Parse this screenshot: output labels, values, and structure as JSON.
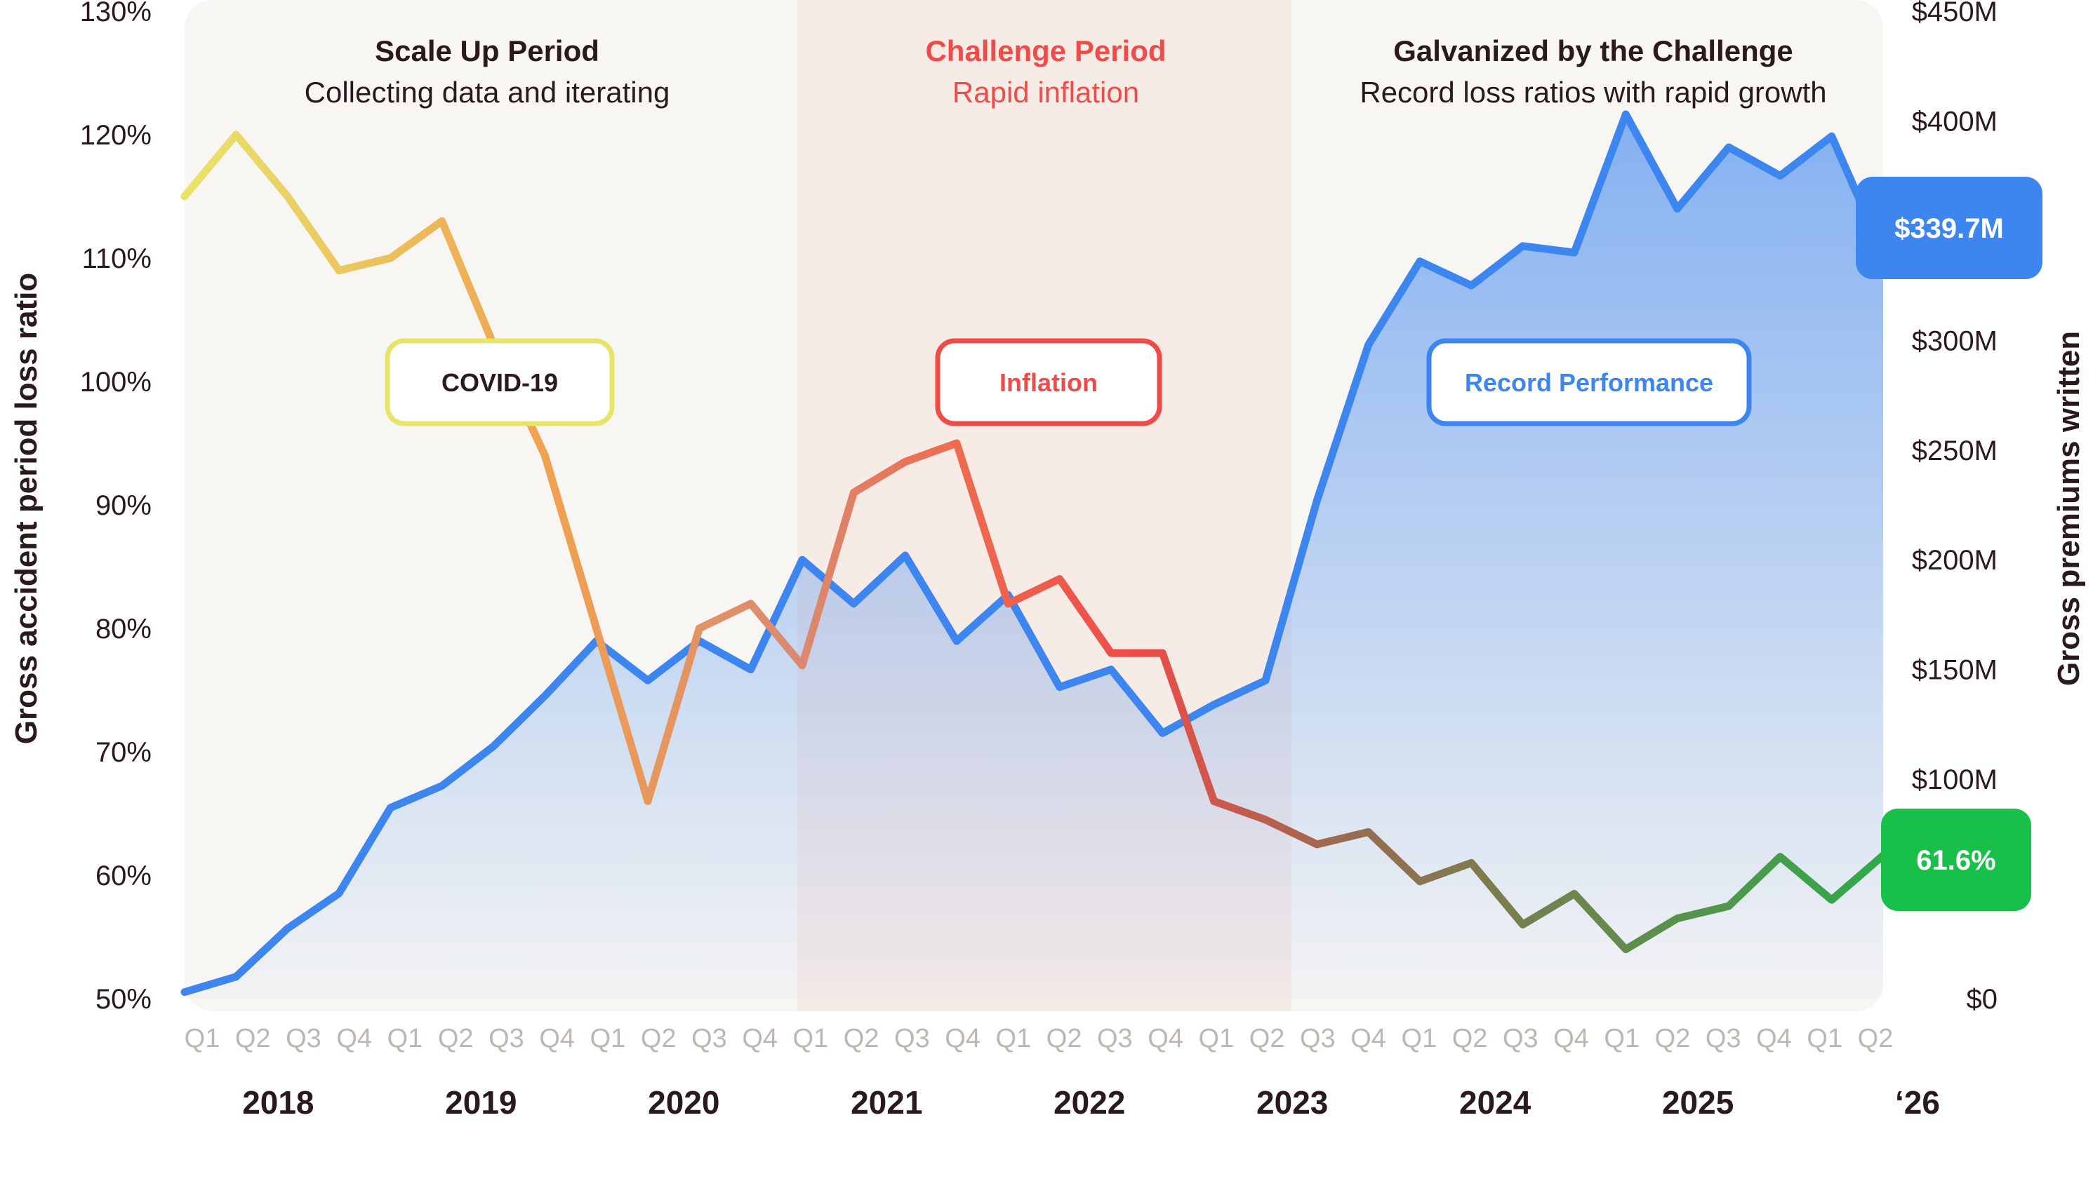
{
  "chart_data": {
    "type": "line",
    "x": [
      "Q1",
      "Q2",
      "Q3",
      "Q4",
      "Q1",
      "Q2",
      "Q3",
      "Q4",
      "Q1",
      "Q2",
      "Q3",
      "Q4",
      "Q1",
      "Q2",
      "Q3",
      "Q4",
      "Q1",
      "Q2",
      "Q3",
      "Q4",
      "Q1",
      "Q2",
      "Q3",
      "Q4",
      "Q1",
      "Q2",
      "Q3",
      "Q4",
      "Q1",
      "Q2",
      "Q3",
      "Q4",
      "Q1",
      "Q2"
    ],
    "years": [
      {
        "label": "2018",
        "start": 0,
        "end": 3
      },
      {
        "label": "2019",
        "start": 4,
        "end": 7
      },
      {
        "label": "2020",
        "start": 8,
        "end": 11
      },
      {
        "label": "2021",
        "start": 12,
        "end": 15
      },
      {
        "label": "2022",
        "start": 16,
        "end": 19
      },
      {
        "label": "2023",
        "start": 20,
        "end": 23
      },
      {
        "label": "2024",
        "start": 24,
        "end": 27
      },
      {
        "label": "2025",
        "start": 28,
        "end": 31
      },
      {
        "label": "‘26",
        "start": 32,
        "end": 33
      }
    ],
    "left_axis": {
      "label": "Gross accident period loss ratio",
      "min": 50,
      "max": 130,
      "ticks": [
        "50%",
        "60%",
        "70%",
        "80%",
        "90%",
        "100%",
        "110%",
        "120%",
        "130%"
      ]
    },
    "right_axis": {
      "label": "Gross premiums written",
      "min": 0,
      "max": 450,
      "ticks": [
        "$0",
        "$100M",
        "$150M",
        "$200M",
        "$250M",
        "$300M",
        "$350M",
        "$400M",
        "$450M"
      ],
      "tick_values": [
        0,
        100,
        150,
        200,
        250,
        300,
        350,
        400,
        450
      ]
    },
    "series": [
      {
        "axis": "left",
        "color_stops": [
          "#e8e46a",
          "#f0a050",
          "#ee5c4e",
          "#2faa4a"
        ],
        "points": [
          [
            0,
            115
          ],
          [
            0.5,
            120
          ],
          [
            1,
            115
          ],
          [
            1.5,
            109
          ],
          [
            2,
            110
          ],
          [
            2.5,
            113
          ],
          [
            3,
            103
          ],
          [
            3.5,
            94
          ],
          [
            4,
            80
          ],
          [
            4.5,
            66
          ],
          [
            5,
            80
          ],
          [
            5.5,
            82
          ],
          [
            6,
            77
          ],
          [
            6.5,
            91
          ],
          [
            7,
            93.5
          ],
          [
            7.5,
            95
          ],
          [
            8,
            82
          ],
          [
            8.5,
            84
          ],
          [
            9,
            78
          ],
          [
            9.5,
            78
          ],
          [
            10,
            66
          ],
          [
            10.5,
            64.5
          ],
          [
            11,
            62.5
          ],
          [
            11.5,
            63.5
          ],
          [
            12,
            59.5
          ],
          [
            12.5,
            61
          ],
          [
            13,
            56
          ],
          [
            13.5,
            58.5
          ],
          [
            14,
            54
          ],
          [
            14.5,
            56.5
          ],
          [
            15,
            57.5
          ],
          [
            15.5,
            61.5
          ],
          [
            16,
            58
          ],
          [
            16.5,
            61.6
          ]
        ]
      },
      {
        "axis": "right",
        "color": "#3d86f0",
        "points": [
          [
            0,
            3
          ],
          [
            0.5,
            10
          ],
          [
            1,
            32
          ],
          [
            1.5,
            48
          ],
          [
            2,
            87
          ],
          [
            2.5,
            97
          ],
          [
            3,
            115
          ],
          [
            3.5,
            138
          ],
          [
            4,
            163
          ],
          [
            4.5,
            145
          ],
          [
            5,
            163
          ],
          [
            5.5,
            150
          ],
          [
            6,
            200
          ],
          [
            6.5,
            180
          ],
          [
            7,
            202
          ],
          [
            7.5,
            163
          ],
          [
            8,
            184
          ],
          [
            8.5,
            142
          ],
          [
            9,
            150
          ],
          [
            9.5,
            121
          ],
          [
            10,
            134
          ],
          [
            10.5,
            145
          ],
          [
            11,
            227
          ],
          [
            11.5,
            298
          ],
          [
            12,
            336
          ],
          [
            12.5,
            325
          ],
          [
            13,
            343
          ],
          [
            13.5,
            340
          ],
          [
            14,
            403
          ],
          [
            14.5,
            360
          ],
          [
            15,
            388
          ],
          [
            15.5,
            375
          ],
          [
            16,
            393
          ],
          [
            16.5,
            339.7
          ]
        ]
      }
    ],
    "periods": [
      {
        "title": "Scale Up Period",
        "subtitle": "Collecting data and iterating",
        "title_color": "#2b1a1c",
        "sub_color": "#2b1a1c",
        "bg": "#f8f6f3"
      },
      {
        "title": "Challenge Period",
        "subtitle": "Rapid inflation",
        "title_color": "#ee4c48",
        "sub_color": "#ee4c48",
        "bg": "#f7ebe6"
      },
      {
        "title": "Galvanized by the Challenge",
        "subtitle": "Record loss ratios with rapid growth",
        "title_color": "#2b1a1c",
        "sub_color": "#2b1a1c",
        "bg": "#f8f6f3"
      }
    ],
    "callouts": [
      {
        "text": "COVID-19",
        "border": "#e8e46a",
        "color": "#2b1a1c"
      },
      {
        "text": "Inflation",
        "border": "#ee4c48",
        "color": "#ee4c48"
      },
      {
        "text": "Record Performance",
        "border": "#3d86f0",
        "color": "#3d86f0"
      }
    ],
    "end_labels": [
      {
        "text": "$339.7M",
        "bg": "#3d86f0"
      },
      {
        "text": "61.6%",
        "bg": "#18c04a"
      }
    ]
  }
}
